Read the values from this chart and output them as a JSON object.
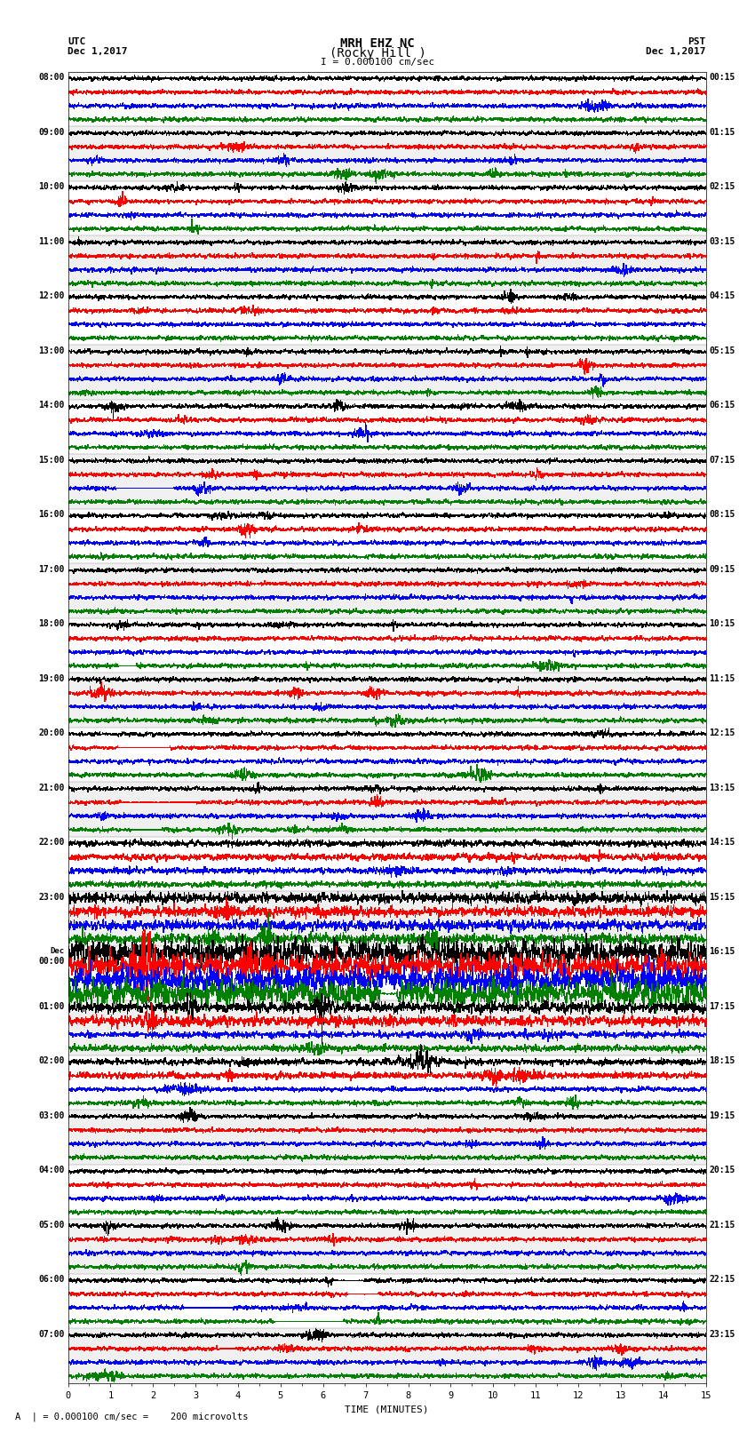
{
  "title_line1": "MRH EHZ NC",
  "title_line2": "(Rocky Hill )",
  "scale_label": "I = 0.000100 cm/sec",
  "xlabel": "TIME (MINUTES)",
  "footer": "A  | = 0.000100 cm/sec =    200 microvolts",
  "xlim": [
    0,
    15
  ],
  "xticks": [
    0,
    1,
    2,
    3,
    4,
    5,
    6,
    7,
    8,
    9,
    10,
    11,
    12,
    13,
    14,
    15
  ],
  "num_rows": 96,
  "row_colors": [
    "black",
    "red",
    "blue",
    "green"
  ],
  "left_times_utc": [
    "08:00",
    "",
    "",
    "",
    "09:00",
    "",
    "",
    "",
    "10:00",
    "",
    "",
    "",
    "11:00",
    "",
    "",
    "",
    "12:00",
    "",
    "",
    "",
    "13:00",
    "",
    "",
    "",
    "14:00",
    "",
    "",
    "",
    "15:00",
    "",
    "",
    "",
    "16:00",
    "",
    "",
    "",
    "17:00",
    "",
    "",
    "",
    "18:00",
    "",
    "",
    "",
    "19:00",
    "",
    "",
    "",
    "20:00",
    "",
    "",
    "",
    "21:00",
    "",
    "",
    "",
    "22:00",
    "",
    "",
    "",
    "23:00",
    "",
    "",
    "",
    "Dec\n00:00",
    "",
    "",
    "",
    "01:00",
    "",
    "",
    "",
    "02:00",
    "",
    "",
    "",
    "03:00",
    "",
    "",
    "",
    "04:00",
    "",
    "",
    "",
    "05:00",
    "",
    "",
    "",
    "06:00",
    "",
    "",
    "",
    "07:00",
    "",
    "",
    ""
  ],
  "right_times_pst": [
    "00:15",
    "",
    "",
    "",
    "01:15",
    "",
    "",
    "",
    "02:15",
    "",
    "",
    "",
    "03:15",
    "",
    "",
    "",
    "04:15",
    "",
    "",
    "",
    "05:15",
    "",
    "",
    "",
    "06:15",
    "",
    "",
    "",
    "07:15",
    "",
    "",
    "",
    "08:15",
    "",
    "",
    "",
    "09:15",
    "",
    "",
    "",
    "10:15",
    "",
    "",
    "",
    "11:15",
    "",
    "",
    "",
    "12:15",
    "",
    "",
    "",
    "13:15",
    "",
    "",
    "",
    "14:15",
    "",
    "",
    "",
    "15:15",
    "",
    "",
    "",
    "16:15",
    "",
    "",
    "",
    "17:15",
    "",
    "",
    "",
    "18:15",
    "",
    "",
    "",
    "19:15",
    "",
    "",
    "",
    "20:15",
    "",
    "",
    "",
    "21:15",
    "",
    "",
    "",
    "22:15",
    "",
    "",
    "",
    "23:15",
    "",
    "",
    ""
  ],
  "bg_color": "white",
  "line_width": 0.25,
  "amplitude_scale": 0.38,
  "figsize": [
    8.5,
    16.13
  ],
  "dpi": 100
}
